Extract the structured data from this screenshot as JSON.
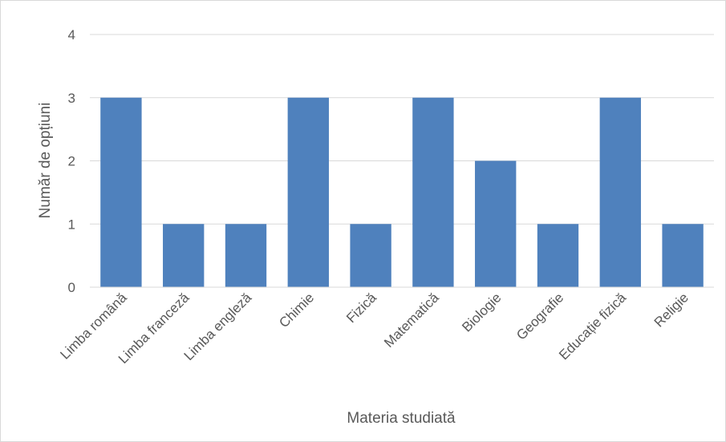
{
  "chart_data": {
    "type": "bar",
    "title": "",
    "xlabel": "Materia studiată",
    "ylabel": "Număr de opțiuni",
    "categories": [
      "Limba română",
      "Limba franceză",
      "Limba engleză",
      "Chimie",
      "Fizică",
      "Matematică",
      "Biologie",
      "Geografie",
      "Educație fizică",
      "Religie"
    ],
    "values": [
      3,
      1,
      1,
      3,
      1,
      3,
      2,
      1,
      3,
      1
    ],
    "ylim": [
      0,
      4
    ],
    "yticks": [
      "0",
      "1",
      "2",
      "3",
      "4"
    ],
    "grid": true,
    "legend": "none",
    "bar_color": "#4f81bd",
    "grid_color": "#d9d9d9",
    "text_color": "#595959"
  }
}
